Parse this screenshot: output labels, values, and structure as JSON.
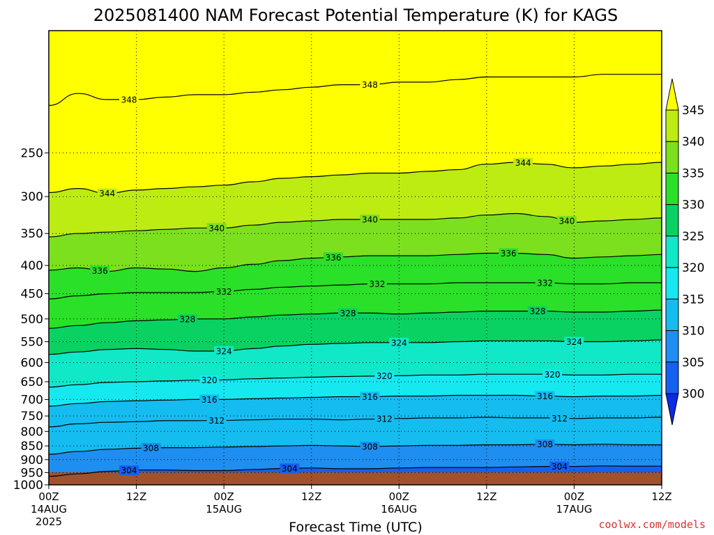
{
  "chart_data": {
    "type": "heatmap",
    "title": "2025081400 NAM Forecast Potential Temperature (K) for KAGS",
    "xlabel": "Forecast Time (UTC)",
    "ylabel": "",
    "y_scale": "log",
    "ylim": [
      1000,
      150
    ],
    "y_ticks": [
      250,
      300,
      350,
      400,
      450,
      500,
      550,
      600,
      650,
      700,
      750,
      800,
      850,
      900,
      950,
      1000
    ],
    "x_ticks": [
      {
        "hour": 0,
        "label": "00Z",
        "date": "14AUG",
        "year": "2025"
      },
      {
        "hour": 12,
        "label": "12Z",
        "date": "",
        "year": ""
      },
      {
        "hour": 24,
        "label": "00Z",
        "date": "15AUG",
        "year": ""
      },
      {
        "hour": 36,
        "label": "12Z",
        "date": "",
        "year": ""
      },
      {
        "hour": 48,
        "label": "00Z",
        "date": "16AUG",
        "year": ""
      },
      {
        "hour": 60,
        "label": "12Z",
        "date": "",
        "year": ""
      },
      {
        "hour": 72,
        "label": "00Z",
        "date": "17AUG",
        "year": ""
      },
      {
        "hour": 84,
        "label": "12Z",
        "date": "",
        "year": ""
      }
    ],
    "grid": true,
    "colorbar": {
      "ticks": [
        300,
        305,
        310,
        315,
        320,
        325,
        330,
        335,
        340,
        345
      ],
      "colors": [
        "#0a2ae6",
        "#1460f0",
        "#1e8ef0",
        "#14bcf0",
        "#16e8f0",
        "#10e8c8",
        "#0ad262",
        "#2ae028",
        "#7ce01e",
        "#bcec12",
        "#ffff00"
      ],
      "extend": "both"
    },
    "contour_interval": 4,
    "contours": [
      {
        "level": 304,
        "label_hours": [
          11,
          33,
          70
        ],
        "points": [
          [
            0,
            965
          ],
          [
            4,
            955
          ],
          [
            8,
            945
          ],
          [
            12,
            940
          ],
          [
            16,
            940
          ],
          [
            20,
            942
          ],
          [
            24,
            942
          ],
          [
            28,
            938
          ],
          [
            32,
            934
          ],
          [
            36,
            932
          ],
          [
            40,
            935
          ],
          [
            44,
            935
          ],
          [
            48,
            932
          ],
          [
            52,
            930
          ],
          [
            56,
            930
          ],
          [
            60,
            930
          ],
          [
            64,
            928
          ],
          [
            68,
            926
          ],
          [
            72,
            926
          ],
          [
            76,
            924
          ],
          [
            80,
            925
          ],
          [
            84,
            925
          ]
        ]
      },
      {
        "level": 308,
        "label_hours": [
          14,
          44,
          68
        ],
        "points": [
          [
            0,
            880
          ],
          [
            4,
            870
          ],
          [
            8,
            862
          ],
          [
            12,
            858
          ],
          [
            16,
            856
          ],
          [
            20,
            856
          ],
          [
            24,
            854
          ],
          [
            28,
            852
          ],
          [
            32,
            850
          ],
          [
            36,
            848
          ],
          [
            40,
            850
          ],
          [
            44,
            852
          ],
          [
            48,
            850
          ],
          [
            52,
            848
          ],
          [
            56,
            848
          ],
          [
            60,
            846
          ],
          [
            64,
            846
          ],
          [
            68,
            844
          ],
          [
            72,
            846
          ],
          [
            76,
            844
          ],
          [
            80,
            846
          ],
          [
            84,
            846
          ]
        ]
      },
      {
        "level": 312,
        "label_hours": [
          23,
          46,
          70
        ],
        "points": [
          [
            0,
            785
          ],
          [
            4,
            775
          ],
          [
            8,
            770
          ],
          [
            12,
            768
          ],
          [
            16,
            765
          ],
          [
            20,
            765
          ],
          [
            24,
            764
          ],
          [
            28,
            762
          ],
          [
            32,
            760
          ],
          [
            36,
            760
          ],
          [
            40,
            762
          ],
          [
            44,
            760
          ],
          [
            48,
            758
          ],
          [
            52,
            756
          ],
          [
            56,
            756
          ],
          [
            60,
            754
          ],
          [
            64,
            756
          ],
          [
            68,
            756
          ],
          [
            72,
            758
          ],
          [
            76,
            756
          ],
          [
            80,
            756
          ],
          [
            84,
            754
          ]
        ]
      },
      {
        "level": 316,
        "label_hours": [
          22,
          44,
          68
        ],
        "points": [
          [
            0,
            720
          ],
          [
            4,
            712
          ],
          [
            8,
            706
          ],
          [
            12,
            704
          ],
          [
            16,
            702
          ],
          [
            20,
            700
          ],
          [
            24,
            700
          ],
          [
            28,
            698
          ],
          [
            32,
            696
          ],
          [
            36,
            694
          ],
          [
            40,
            692
          ],
          [
            44,
            692
          ],
          [
            48,
            690
          ],
          [
            52,
            690
          ],
          [
            56,
            688
          ],
          [
            60,
            688
          ],
          [
            64,
            688
          ],
          [
            68,
            690
          ],
          [
            72,
            692
          ],
          [
            76,
            690
          ],
          [
            80,
            690
          ],
          [
            84,
            688
          ]
        ]
      },
      {
        "level": 320,
        "label_hours": [
          22,
          46,
          69
        ],
        "points": [
          [
            0,
            665
          ],
          [
            4,
            658
          ],
          [
            8,
            652
          ],
          [
            12,
            650
          ],
          [
            16,
            648
          ],
          [
            20,
            646
          ],
          [
            24,
            645
          ],
          [
            28,
            642
          ],
          [
            32,
            640
          ],
          [
            36,
            638
          ],
          [
            40,
            636
          ],
          [
            44,
            635
          ],
          [
            48,
            634
          ],
          [
            52,
            632
          ],
          [
            56,
            632
          ],
          [
            60,
            630
          ],
          [
            64,
            630
          ],
          [
            68,
            630
          ],
          [
            72,
            632
          ],
          [
            76,
            632
          ],
          [
            80,
            630
          ],
          [
            84,
            630
          ]
        ]
      },
      {
        "level": 324,
        "label_hours": [
          24,
          48,
          72
        ],
        "points": [
          [
            0,
            580
          ],
          [
            4,
            574
          ],
          [
            8,
            568
          ],
          [
            12,
            566
          ],
          [
            16,
            568
          ],
          [
            20,
            572
          ],
          [
            24,
            572
          ],
          [
            28,
            566
          ],
          [
            32,
            560
          ],
          [
            36,
            556
          ],
          [
            40,
            554
          ],
          [
            44,
            552
          ],
          [
            48,
            552
          ],
          [
            52,
            552
          ],
          [
            56,
            550
          ],
          [
            60,
            548
          ],
          [
            64,
            548
          ],
          [
            68,
            548
          ],
          [
            72,
            550
          ],
          [
            76,
            550
          ],
          [
            80,
            548
          ],
          [
            84,
            546
          ]
        ]
      },
      {
        "level": 328,
        "label_hours": [
          19,
          41,
          67
        ],
        "points": [
          [
            0,
            520
          ],
          [
            4,
            514
          ],
          [
            8,
            508
          ],
          [
            12,
            504
          ],
          [
            16,
            502
          ],
          [
            20,
            500
          ],
          [
            24,
            500
          ],
          [
            28,
            496
          ],
          [
            32,
            492
          ],
          [
            36,
            490
          ],
          [
            40,
            488
          ],
          [
            44,
            488
          ],
          [
            48,
            490
          ],
          [
            52,
            488
          ],
          [
            56,
            486
          ],
          [
            60,
            484
          ],
          [
            64,
            484
          ],
          [
            68,
            484
          ],
          [
            72,
            486
          ],
          [
            76,
            486
          ],
          [
            80,
            484
          ],
          [
            84,
            482
          ]
        ]
      },
      {
        "level": 332,
        "label_hours": [
          24,
          45,
          68
        ],
        "points": [
          [
            0,
            460
          ],
          [
            4,
            454
          ],
          [
            8,
            450
          ],
          [
            12,
            448
          ],
          [
            16,
            448
          ],
          [
            20,
            448
          ],
          [
            24,
            446
          ],
          [
            28,
            442
          ],
          [
            32,
            438
          ],
          [
            36,
            436
          ],
          [
            40,
            434
          ],
          [
            44,
            432
          ],
          [
            48,
            432
          ],
          [
            52,
            432
          ],
          [
            56,
            430
          ],
          [
            60,
            430
          ],
          [
            64,
            430
          ],
          [
            68,
            430
          ],
          [
            72,
            432
          ],
          [
            76,
            432
          ],
          [
            80,
            430
          ],
          [
            84,
            430
          ]
        ]
      },
      {
        "level": 336,
        "label_hours": [
          7,
          39,
          63
        ],
        "points": [
          [
            0,
            408
          ],
          [
            4,
            404
          ],
          [
            8,
            410
          ],
          [
            12,
            404
          ],
          [
            16,
            406
          ],
          [
            20,
            410
          ],
          [
            24,
            404
          ],
          [
            28,
            398
          ],
          [
            32,
            392
          ],
          [
            36,
            388
          ],
          [
            40,
            386
          ],
          [
            44,
            384
          ],
          [
            48,
            384
          ],
          [
            52,
            384
          ],
          [
            56,
            382
          ],
          [
            60,
            380
          ],
          [
            64,
            380
          ],
          [
            68,
            382
          ],
          [
            72,
            388
          ],
          [
            76,
            386
          ],
          [
            80,
            384
          ],
          [
            84,
            382
          ]
        ]
      },
      {
        "level": 340,
        "label_hours": [
          23,
          44,
          71
        ],
        "points": [
          [
            0,
            355
          ],
          [
            4,
            350
          ],
          [
            8,
            348
          ],
          [
            12,
            346
          ],
          [
            16,
            344
          ],
          [
            20,
            342
          ],
          [
            24,
            342
          ],
          [
            28,
            338
          ],
          [
            32,
            334
          ],
          [
            36,
            332
          ],
          [
            40,
            330
          ],
          [
            44,
            330
          ],
          [
            48,
            330
          ],
          [
            52,
            330
          ],
          [
            56,
            328
          ],
          [
            60,
            324
          ],
          [
            64,
            322
          ],
          [
            68,
            326
          ],
          [
            72,
            334
          ],
          [
            76,
            332
          ],
          [
            80,
            330
          ],
          [
            84,
            328
          ]
        ]
      },
      {
        "level": 344,
        "label_hours": [
          8,
          65
        ],
        "points": [
          [
            0,
            295
          ],
          [
            4,
            290
          ],
          [
            8,
            296
          ],
          [
            12,
            292
          ],
          [
            16,
            290
          ],
          [
            20,
            288
          ],
          [
            24,
            286
          ],
          [
            28,
            282
          ],
          [
            32,
            278
          ],
          [
            36,
            276
          ],
          [
            40,
            274
          ],
          [
            44,
            272
          ],
          [
            48,
            272
          ],
          [
            52,
            270
          ],
          [
            56,
            268
          ],
          [
            60,
            262
          ],
          [
            64,
            260
          ],
          [
            68,
            262
          ],
          [
            72,
            266
          ],
          [
            76,
            264
          ],
          [
            80,
            262
          ],
          [
            84,
            260
          ]
        ]
      },
      {
        "level": 348,
        "label_hours": [
          11,
          44
        ],
        "points": [
          [
            0,
            205
          ],
          [
            4,
            195
          ],
          [
            8,
            200
          ],
          [
            12,
            200
          ],
          [
            16,
            198
          ],
          [
            20,
            196
          ],
          [
            24,
            196
          ],
          [
            28,
            194
          ],
          [
            32,
            192
          ],
          [
            36,
            190
          ],
          [
            40,
            188
          ],
          [
            44,
            188
          ],
          [
            48,
            186
          ],
          [
            52,
            186
          ],
          [
            56,
            184
          ],
          [
            60,
            182
          ],
          [
            64,
            182
          ],
          [
            68,
            182
          ],
          [
            72,
            182
          ],
          [
            76,
            180
          ],
          [
            80,
            180
          ],
          [
            84,
            180
          ]
        ]
      }
    ]
  },
  "credit": "coolwx.com/models"
}
